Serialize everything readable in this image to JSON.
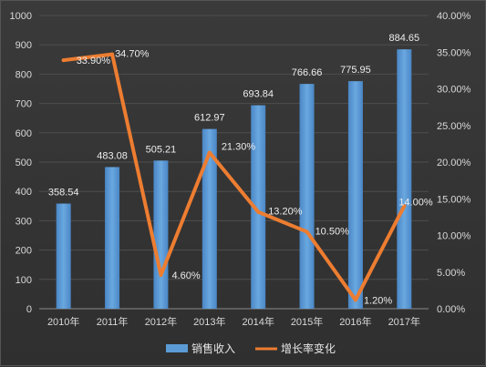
{
  "chart_data": {
    "type": "bar",
    "categories": [
      "2010年",
      "2011年",
      "2012年",
      "2013年",
      "2014年",
      "2015年",
      "2016年",
      "2017年"
    ],
    "series": [
      {
        "name": "销售收入",
        "type": "bar",
        "axis": "left",
        "values": [
          358.54,
          483.08,
          505.21,
          612.97,
          693.84,
          766.66,
          775.95,
          884.65
        ],
        "labels": [
          "358.54",
          "483.08",
          "505.21",
          "612.97",
          "693.84",
          "766.66",
          "775.95",
          "884.65"
        ],
        "color": "#5b9bd5"
      },
      {
        "name": "增长率变化",
        "type": "line",
        "axis": "right",
        "values": [
          33.9,
          34.7,
          4.6,
          21.3,
          13.2,
          10.5,
          1.2,
          14.0
        ],
        "labels": [
          "33.90%",
          "34.70%",
          "4.60%",
          "21.30%",
          "13.20%",
          "10.50%",
          "1.20%",
          "14.00%"
        ],
        "color": "#ed7d31"
      }
    ],
    "y_left": {
      "min": 0,
      "max": 1000,
      "ticks": [
        0,
        100,
        200,
        300,
        400,
        500,
        600,
        700,
        800,
        900,
        1000
      ],
      "tick_labels": [
        "0",
        "100",
        "200",
        "300",
        "400",
        "500",
        "600",
        "700",
        "800",
        "900",
        "1000"
      ]
    },
    "y_right": {
      "min": 0,
      "max": 40,
      "ticks": [
        0,
        5,
        10,
        15,
        20,
        25,
        30,
        35,
        40
      ],
      "tick_labels": [
        "0.00%",
        "5.00%",
        "10.00%",
        "15.00%",
        "20.00%",
        "25.00%",
        "30.00%",
        "35.00%",
        "40.00%"
      ]
    },
    "grid": true,
    "legend_position": "bottom"
  }
}
